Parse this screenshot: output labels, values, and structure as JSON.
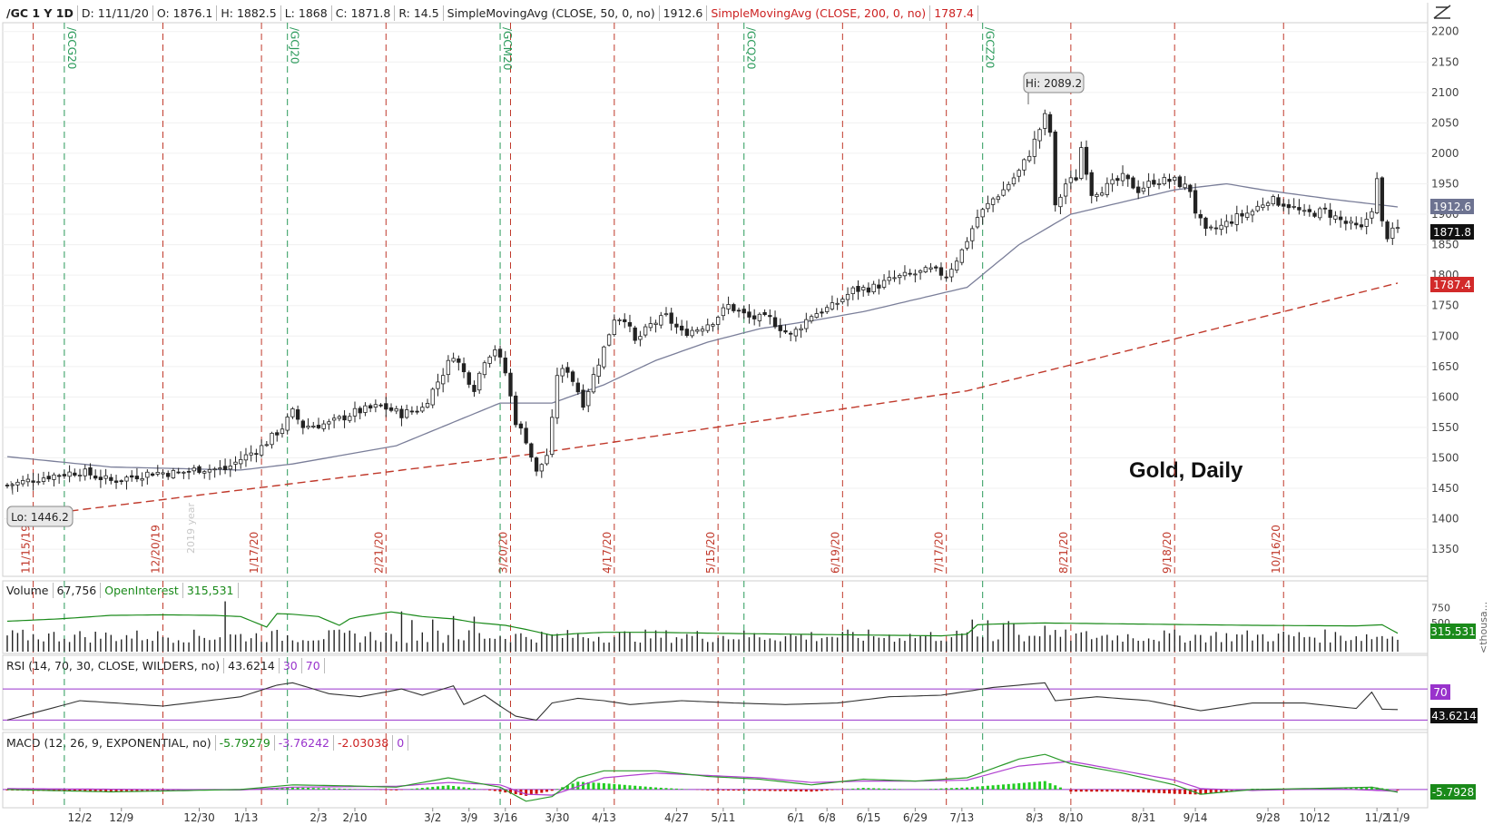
{
  "header": {
    "symbol": "/GC 1 Y 1D",
    "date": "D: 11/11/20",
    "open": "O: 1876.1",
    "high": "H: 1882.5",
    "low": "L: 1868",
    "close": "C: 1871.8",
    "range": "R: 14.5",
    "sma50_label": "SimpleMovingAvg (CLOSE, 50, 0, no)",
    "sma50_value": "1912.6",
    "sma200_label": "SimpleMovingAvg (CLOSE, 200, 0, no)",
    "sma200_value": "1787.4"
  },
  "volume_header": {
    "label": "Volume",
    "value": "67,756",
    "oi_label": "OpenInterest",
    "oi_value": "315,531"
  },
  "rsi_header": {
    "label": "RSI (14, 70, 30, CLOSE, WILDERS, no)",
    "value": "43.6214",
    "low": "30",
    "high": "70"
  },
  "macd_header": {
    "label": "MACD (12, 26, 9, EXPONENTIAL, no)",
    "value": "-5.79279",
    "avg": "-3.76242",
    "diff": "-2.03038",
    "zero": "0"
  },
  "annotations": {
    "hi": "Hi: 2089.2",
    "lo": "Lo: 1446.2",
    "title": "Gold, Daily",
    "year_mark": "2019 year"
  },
  "price_tags": {
    "sma50": "1912.6",
    "last": "1871.8",
    "sma200": "1787.4",
    "oi": "315.531",
    "rsi_line": "70",
    "rsi": "43.6214",
    "macd": "-5.7928"
  },
  "volume_axis_unit": "<thousa...",
  "colors": {
    "sma50": "#7a7e99",
    "sma200": "#c0392b",
    "rsi_line": "#9933cc",
    "oi": "#1a8a1a",
    "macd_signal": "#b040d0",
    "macd_value": "#2a9a2a"
  },
  "chart_data": {
    "type": "candlestick",
    "title": "Gold, Daily",
    "y_ticks": [
      2200,
      2150,
      2100,
      2050,
      2000,
      1950,
      1900,
      1850,
      1800,
      1750,
      1700,
      1650,
      1600,
      1550,
      1500,
      1450,
      1400,
      1350
    ],
    "ylim": [
      1310,
      2210
    ],
    "x_labels": [
      "12/2",
      "12/9",
      "12/30",
      "1/13",
      "2/3",
      "2/10",
      "3/2",
      "3/9",
      "3/16",
      "3/30",
      "4/13",
      "4/27",
      "5/11",
      "6/1",
      "6/8",
      "6/15",
      "6/29",
      "7/13",
      "8/3",
      "8/10",
      "8/31",
      "9/14",
      "9/28",
      "10/12",
      "11/2",
      "11/9"
    ],
    "red_markers": [
      "11/15/19",
      "12/20/19",
      "1/17/20",
      "2/21/20",
      "3/20/20",
      "4/17/20",
      "5/15/20",
      "6/19/20",
      "7/17/20",
      "8/21/20",
      "9/18/20",
      "10/16/20"
    ],
    "green_markers": [
      "/GCG20",
      "/GCJ20",
      "/GCM20",
      "/GCQ20",
      "/GCZ20"
    ],
    "close_path": [
      [
        0,
        1455
      ],
      [
        8,
        1470
      ],
      [
        14,
        1478
      ],
      [
        20,
        1462
      ],
      [
        28,
        1476
      ],
      [
        33,
        1475
      ],
      [
        37,
        1482
      ],
      [
        42,
        1481
      ],
      [
        45,
        1498
      ],
      [
        49,
        1518
      ],
      [
        53,
        1550
      ],
      [
        55,
        1575
      ],
      [
        57,
        1552
      ],
      [
        62,
        1556
      ],
      [
        67,
        1575
      ],
      [
        72,
        1585
      ],
      [
        76,
        1572
      ],
      [
        80,
        1582
      ],
      [
        84,
        1640
      ],
      [
        86,
        1670
      ],
      [
        88,
        1640
      ],
      [
        90,
        1615
      ],
      [
        92,
        1662
      ],
      [
        94,
        1680
      ],
      [
        96,
        1640
      ],
      [
        98,
        1560
      ],
      [
        100,
        1530
      ],
      [
        102,
        1475
      ],
      [
        104,
        1505
      ],
      [
        105,
        1560
      ],
      [
        106,
        1638
      ],
      [
        108,
        1645
      ],
      [
        110,
        1610
      ],
      [
        111,
        1590
      ],
      [
        113,
        1635
      ],
      [
        115,
        1680
      ],
      [
        117,
        1730
      ],
      [
        119,
        1730
      ],
      [
        121,
        1690
      ],
      [
        124,
        1718
      ],
      [
        127,
        1732
      ],
      [
        130,
        1705
      ],
      [
        133,
        1712
      ],
      [
        136,
        1725
      ],
      [
        139,
        1750
      ],
      [
        143,
        1730
      ],
      [
        147,
        1728
      ],
      [
        151,
        1700
      ],
      [
        155,
        1735
      ],
      [
        159,
        1748
      ],
      [
        163,
        1775
      ],
      [
        167,
        1780
      ],
      [
        171,
        1795
      ],
      [
        175,
        1802
      ],
      [
        178,
        1808
      ],
      [
        181,
        1800
      ],
      [
        184,
        1840
      ],
      [
        187,
        1895
      ],
      [
        190,
        1925
      ],
      [
        192,
        1940
      ],
      [
        195,
        1970
      ],
      [
        197,
        2000
      ],
      [
        199,
        2040
      ],
      [
        200,
        2060
      ],
      [
        201,
        2035
      ],
      [
        202,
        1910
      ],
      [
        204,
        1950
      ],
      [
        206,
        1960
      ],
      [
        207,
        2010
      ],
      [
        209,
        1935
      ],
      [
        212,
        1945
      ],
      [
        215,
        1960
      ],
      [
        218,
        1940
      ],
      [
        221,
        1955
      ],
      [
        225,
        1955
      ],
      [
        228,
        1940
      ],
      [
        229,
        1905
      ],
      [
        231,
        1870
      ],
      [
        234,
        1880
      ],
      [
        237,
        1895
      ],
      [
        240,
        1905
      ],
      [
        243,
        1925
      ],
      [
        247,
        1915
      ],
      [
        250,
        1900
      ],
      [
        254,
        1905
      ],
      [
        258,
        1885
      ],
      [
        261,
        1875
      ],
      [
        263,
        1910
      ],
      [
        264,
        1955
      ],
      [
        265,
        1885
      ],
      [
        266,
        1865
      ],
      [
        268,
        1876
      ]
    ],
    "sma50_path": [
      [
        0,
        1502
      ],
      [
        20,
        1485
      ],
      [
        45,
        1480
      ],
      [
        55,
        1490
      ],
      [
        65,
        1505
      ],
      [
        75,
        1520
      ],
      [
        85,
        1555
      ],
      [
        95,
        1590
      ],
      [
        105,
        1590
      ],
      [
        115,
        1620
      ],
      [
        125,
        1660
      ],
      [
        135,
        1690
      ],
      [
        145,
        1712
      ],
      [
        155,
        1725
      ],
      [
        165,
        1740
      ],
      [
        175,
        1760
      ],
      [
        185,
        1780
      ],
      [
        195,
        1850
      ],
      [
        205,
        1900
      ],
      [
        215,
        1920
      ],
      [
        225,
        1940
      ],
      [
        235,
        1950
      ],
      [
        242,
        1940
      ],
      [
        255,
        1925
      ],
      [
        268,
        1912
      ]
    ],
    "sma200_path": [
      [
        0,
        1400
      ],
      [
        100,
        1505
      ],
      [
        185,
        1610
      ],
      [
        268,
        1787
      ]
    ],
    "rsi_path": [
      [
        0,
        30
      ],
      [
        14,
        55
      ],
      [
        30,
        48
      ],
      [
        45,
        60
      ],
      [
        52,
        75
      ],
      [
        55,
        78
      ],
      [
        62,
        64
      ],
      [
        68,
        60
      ],
      [
        76,
        70
      ],
      [
        80,
        62
      ],
      [
        86,
        74
      ],
      [
        88,
        50
      ],
      [
        92,
        62
      ],
      [
        95,
        48
      ],
      [
        98,
        35
      ],
      [
        102,
        30
      ],
      [
        105,
        52
      ],
      [
        110,
        58
      ],
      [
        115,
        55
      ],
      [
        120,
        50
      ],
      [
        130,
        55
      ],
      [
        140,
        52
      ],
      [
        150,
        50
      ],
      [
        160,
        52
      ],
      [
        170,
        60
      ],
      [
        180,
        62
      ],
      [
        190,
        72
      ],
      [
        195,
        75
      ],
      [
        200,
        78
      ],
      [
        202,
        55
      ],
      [
        210,
        60
      ],
      [
        220,
        55
      ],
      [
        230,
        42
      ],
      [
        240,
        52
      ],
      [
        250,
        52
      ],
      [
        260,
        45
      ],
      [
        263,
        66
      ],
      [
        265,
        44
      ],
      [
        268,
        43.6
      ]
    ],
    "rsi_lim": [
      20,
      90
    ],
    "macd_value_path": [
      [
        0,
        0
      ],
      [
        20,
        -5
      ],
      [
        45,
        0
      ],
      [
        55,
        10
      ],
      [
        65,
        8
      ],
      [
        75,
        5
      ],
      [
        85,
        25
      ],
      [
        95,
        5
      ],
      [
        100,
        -25
      ],
      [
        105,
        -15
      ],
      [
        110,
        25
      ],
      [
        115,
        40
      ],
      [
        125,
        40
      ],
      [
        135,
        28
      ],
      [
        145,
        22
      ],
      [
        155,
        10
      ],
      [
        165,
        22
      ],
      [
        175,
        18
      ],
      [
        185,
        25
      ],
      [
        195,
        65
      ],
      [
        200,
        75
      ],
      [
        205,
        55
      ],
      [
        215,
        35
      ],
      [
        225,
        10
      ],
      [
        230,
        -10
      ],
      [
        240,
        0
      ],
      [
        255,
        3
      ],
      [
        263,
        5
      ],
      [
        268,
        -5.8
      ]
    ],
    "macd_avg_path": [
      [
        0,
        2
      ],
      [
        45,
        -1
      ],
      [
        55,
        5
      ],
      [
        75,
        7
      ],
      [
        85,
        15
      ],
      [
        95,
        10
      ],
      [
        100,
        -10
      ],
      [
        105,
        -12
      ],
      [
        115,
        25
      ],
      [
        125,
        35
      ],
      [
        135,
        30
      ],
      [
        145,
        25
      ],
      [
        155,
        15
      ],
      [
        165,
        18
      ],
      [
        175,
        18
      ],
      [
        185,
        20
      ],
      [
        195,
        50
      ],
      [
        205,
        60
      ],
      [
        215,
        40
      ],
      [
        225,
        20
      ],
      [
        230,
        2
      ],
      [
        240,
        -2
      ],
      [
        255,
        2
      ],
      [
        268,
        -3.8
      ]
    ],
    "macd_lim": [
      -35,
      85
    ],
    "volume_lim": [
      0,
      900
    ],
    "volume_ticks": [
      750,
      500
    ],
    "oi_path": [
      [
        0,
        520
      ],
      [
        10,
        560
      ],
      [
        20,
        620
      ],
      [
        30,
        630
      ],
      [
        40,
        620
      ],
      [
        45,
        600
      ],
      [
        50,
        420
      ],
      [
        52,
        650
      ],
      [
        55,
        640
      ],
      [
        60,
        600
      ],
      [
        64,
        450
      ],
      [
        66,
        560
      ],
      [
        68,
        600
      ],
      [
        74,
        680
      ],
      [
        80,
        600
      ],
      [
        86,
        560
      ],
      [
        90,
        500
      ],
      [
        96,
        450
      ],
      [
        100,
        380
      ],
      [
        105,
        280
      ],
      [
        110,
        310
      ],
      [
        115,
        330
      ],
      [
        125,
        330
      ],
      [
        140,
        310
      ],
      [
        150,
        300
      ],
      [
        160,
        290
      ],
      [
        170,
        280
      ],
      [
        180,
        270
      ],
      [
        185,
        300
      ],
      [
        187,
        460
      ],
      [
        190,
        470
      ],
      [
        194,
        480
      ],
      [
        200,
        490
      ],
      [
        210,
        480
      ],
      [
        220,
        470
      ],
      [
        240,
        450
      ],
      [
        260,
        440
      ],
      [
        265,
        460
      ],
      [
        268,
        315
      ]
    ]
  }
}
